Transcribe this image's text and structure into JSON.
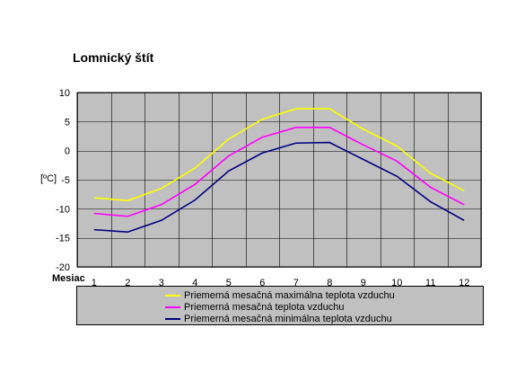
{
  "chart_data": {
    "type": "line",
    "title": "Lomnický štít",
    "xlabel": "Mesiac",
    "ylabel": "[ºC]",
    "categories": [
      "1",
      "2",
      "3",
      "4",
      "5",
      "6",
      "7",
      "8",
      "9",
      "10",
      "11",
      "12"
    ],
    "ylim": [
      -20,
      10
    ],
    "yticks": [
      "10",
      "5",
      "0",
      "-5",
      "-10",
      "-15",
      "-20"
    ],
    "ytick_values": [
      10,
      5,
      0,
      -5,
      -10,
      -15,
      -20
    ],
    "grid": true,
    "legend_position": "bottom",
    "series": [
      {
        "name": "Priemerná mesačná maximálna teplota vzduchu",
        "color": "#ffff00",
        "values": [
          -8.1,
          -8.6,
          -6.5,
          -3.0,
          2.0,
          5.4,
          7.2,
          7.2,
          3.7,
          0.8,
          -3.9,
          -6.9
        ]
      },
      {
        "name": "Priemerná mesačná teplota vzduchu",
        "color": "#ff00ff",
        "values": [
          -10.8,
          -11.3,
          -9.3,
          -5.8,
          -0.9,
          2.3,
          4.0,
          4.0,
          1.0,
          -1.8,
          -6.3,
          -9.3
        ]
      },
      {
        "name": "Priemerná mesačná minimálna teplota vzduchu",
        "color": "#000080",
        "values": [
          -13.6,
          -14.0,
          -12.0,
          -8.5,
          -3.5,
          -0.4,
          1.3,
          1.4,
          -1.5,
          -4.4,
          -8.8,
          -12.0
        ]
      }
    ],
    "plot_background": "#c0c0c0",
    "grid_color": "#000000"
  }
}
